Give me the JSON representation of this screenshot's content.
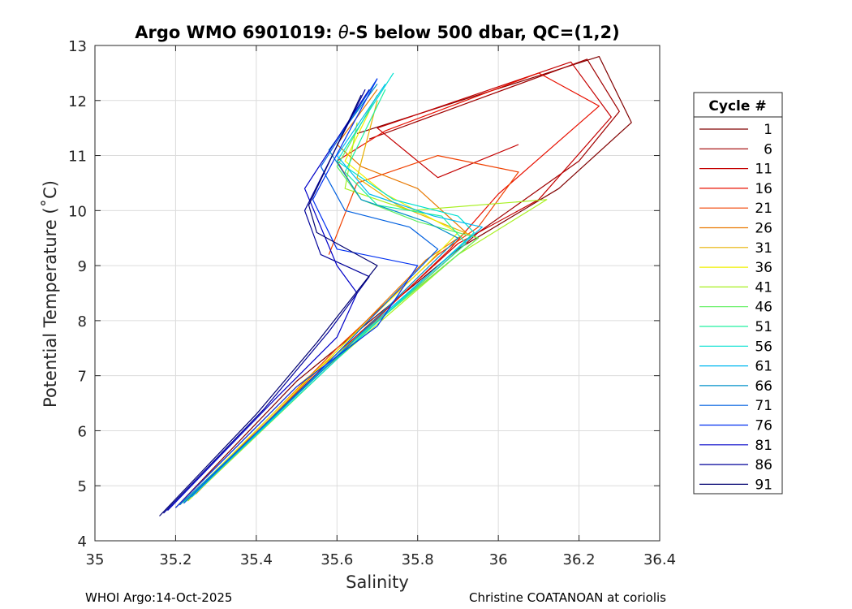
{
  "chart_data": {
    "type": "line",
    "title_prefix": "Argo WMO 6901019: ",
    "title_theta": "θ",
    "title_suffix": "-S below 500 dbar,  QC=(1,2)",
    "xlabel": "Salinity",
    "ylabel": "Potential Temperature (˚C)",
    "xlim": [
      35,
      36.4
    ],
    "ylim": [
      4,
      13
    ],
    "xticks": [
      "35",
      "35.2",
      "35.4",
      "35.6",
      "35.8",
      "36",
      "36.2",
      "36.4"
    ],
    "yticks": [
      "4",
      "5",
      "6",
      "7",
      "8",
      "9",
      "10",
      "11",
      "12",
      "13"
    ],
    "grid": true,
    "legend_title": "Cycle #",
    "legend_position": "right",
    "legend": [
      {
        "label": "1",
        "color": "#800000"
      },
      {
        "label": "6",
        "color": "#a00000"
      },
      {
        "label": "11",
        "color": "#c40000"
      },
      {
        "label": "16",
        "color": "#e81000"
      },
      {
        "label": "21",
        "color": "#f04000"
      },
      {
        "label": "26",
        "color": "#e87800"
      },
      {
        "label": "31",
        "color": "#e8b000"
      },
      {
        "label": "36",
        "color": "#f0f000"
      },
      {
        "label": "41",
        "color": "#a8f020"
      },
      {
        "label": "46",
        "color": "#60f060"
      },
      {
        "label": "51",
        "color": "#20f0a0"
      },
      {
        "label": "56",
        "color": "#00e0d0"
      },
      {
        "label": "61",
        "color": "#00b8f0"
      },
      {
        "label": "66",
        "color": "#0090c8"
      },
      {
        "label": "71",
        "color": "#0060e0"
      },
      {
        "label": "76",
        "color": "#0030f0"
      },
      {
        "label": "81",
        "color": "#0000c8"
      },
      {
        "label": "86",
        "color": "#00009a"
      },
      {
        "label": "91",
        "color": "#000070"
      }
    ],
    "series": [
      {
        "name": "1",
        "color": "#800000",
        "points": [
          [
            35.2,
            4.6
          ],
          [
            35.5,
            6.9
          ],
          [
            35.9,
            9.3
          ],
          [
            36.15,
            10.4
          ],
          [
            36.33,
            11.6
          ],
          [
            36.25,
            12.8
          ],
          [
            35.65,
            11.4
          ]
        ]
      },
      {
        "name": "6",
        "color": "#a00000",
        "points": [
          [
            35.22,
            4.7
          ],
          [
            35.55,
            7.0
          ],
          [
            35.95,
            9.6
          ],
          [
            36.2,
            10.9
          ],
          [
            36.3,
            11.8
          ],
          [
            36.22,
            12.75
          ],
          [
            35.68,
            11.3
          ]
        ]
      },
      {
        "name": "11",
        "color": "#c40000",
        "points": [
          [
            35.23,
            4.75
          ],
          [
            35.6,
            7.4
          ],
          [
            35.9,
            9.4
          ],
          [
            36.1,
            10.2
          ],
          [
            36.28,
            11.7
          ],
          [
            36.18,
            12.7
          ],
          [
            35.7,
            11.5
          ],
          [
            35.85,
            10.6
          ],
          [
            36.05,
            11.2
          ]
        ]
      },
      {
        "name": "16",
        "color": "#e81000",
        "points": [
          [
            35.21,
            4.65
          ],
          [
            35.58,
            7.2
          ],
          [
            35.88,
            9.3
          ],
          [
            36.0,
            10.3
          ],
          [
            36.25,
            11.9
          ],
          [
            36.1,
            12.5
          ],
          [
            35.72,
            11.45
          ],
          [
            35.6,
            10.9
          ],
          [
            35.65,
            10.3
          ]
        ]
      },
      {
        "name": "21",
        "color": "#f04000",
        "points": [
          [
            35.24,
            4.8
          ],
          [
            35.6,
            7.5
          ],
          [
            35.85,
            9.2
          ],
          [
            35.95,
            9.7
          ],
          [
            36.05,
            10.7
          ],
          [
            35.85,
            11.0
          ],
          [
            35.65,
            10.5
          ],
          [
            35.58,
            9.2
          ]
        ]
      },
      {
        "name": "26",
        "color": "#e87800",
        "points": [
          [
            35.25,
            4.85
          ],
          [
            35.62,
            7.6
          ],
          [
            35.82,
            9.1
          ],
          [
            35.92,
            9.6
          ],
          [
            35.8,
            10.4
          ],
          [
            35.66,
            10.8
          ],
          [
            35.6,
            11.2
          ],
          [
            35.7,
            12.2
          ]
        ]
      },
      {
        "name": "31",
        "color": "#e8b000",
        "points": [
          [
            35.2,
            4.6
          ],
          [
            35.5,
            6.8
          ],
          [
            35.8,
            8.6
          ],
          [
            35.95,
            9.5
          ],
          [
            35.75,
            10.1
          ],
          [
            35.65,
            10.6
          ],
          [
            35.7,
            12.0
          ]
        ]
      },
      {
        "name": "36",
        "color": "#f0f000",
        "points": [
          [
            35.22,
            4.7
          ],
          [
            35.55,
            7.1
          ],
          [
            35.82,
            9.0
          ],
          [
            35.9,
            9.6
          ],
          [
            35.72,
            10.3
          ],
          [
            35.62,
            10.9
          ],
          [
            35.68,
            11.8
          ]
        ]
      },
      {
        "name": "41",
        "color": "#a8f020",
        "points": [
          [
            35.23,
            4.72
          ],
          [
            35.6,
            7.3
          ],
          [
            35.9,
            9.2
          ],
          [
            36.12,
            10.2
          ],
          [
            35.78,
            10.0
          ],
          [
            35.62,
            10.4
          ],
          [
            35.65,
            11.6
          ]
        ]
      },
      {
        "name": "46",
        "color": "#60f060",
        "points": [
          [
            35.24,
            4.8
          ],
          [
            35.62,
            7.5
          ],
          [
            35.95,
            9.5
          ],
          [
            35.8,
            9.8
          ],
          [
            35.66,
            10.2
          ],
          [
            35.6,
            10.8
          ],
          [
            35.7,
            12.1
          ]
        ]
      },
      {
        "name": "51",
        "color": "#20f0a0",
        "points": [
          [
            35.22,
            4.7
          ],
          [
            35.58,
            7.2
          ],
          [
            35.92,
            9.4
          ],
          [
            35.86,
            9.9
          ],
          [
            35.7,
            10.1
          ],
          [
            35.62,
            10.7
          ],
          [
            35.72,
            12.2
          ]
        ]
      },
      {
        "name": "56",
        "color": "#00e0d0",
        "points": [
          [
            35.23,
            4.75
          ],
          [
            35.6,
            7.3
          ],
          [
            35.94,
            9.6
          ],
          [
            35.9,
            9.9
          ],
          [
            35.74,
            10.2
          ],
          [
            35.6,
            10.9
          ],
          [
            35.74,
            12.5
          ]
        ]
      },
      {
        "name": "61",
        "color": "#00b8f0",
        "points": [
          [
            35.24,
            4.8
          ],
          [
            35.62,
            7.5
          ],
          [
            35.96,
            9.7
          ],
          [
            35.84,
            9.9
          ],
          [
            35.68,
            10.3
          ],
          [
            35.6,
            11.0
          ],
          [
            35.72,
            12.3
          ]
        ]
      },
      {
        "name": "66",
        "color": "#0090c8",
        "points": [
          [
            35.21,
            4.65
          ],
          [
            35.58,
            7.2
          ],
          [
            35.9,
            9.5
          ],
          [
            35.82,
            9.8
          ],
          [
            35.66,
            10.2
          ],
          [
            35.58,
            11.1
          ],
          [
            35.7,
            12.3
          ]
        ]
      },
      {
        "name": "71",
        "color": "#0060e0",
        "points": [
          [
            35.22,
            4.68
          ],
          [
            35.56,
            7.1
          ],
          [
            35.85,
            9.3
          ],
          [
            35.78,
            9.7
          ],
          [
            35.62,
            10.0
          ],
          [
            35.56,
            10.8
          ],
          [
            35.7,
            12.4
          ]
        ]
      },
      {
        "name": "76",
        "color": "#0030f0",
        "points": [
          [
            35.2,
            4.6
          ],
          [
            35.5,
            6.8
          ],
          [
            35.7,
            7.9
          ],
          [
            35.8,
            9.0
          ],
          [
            35.6,
            9.3
          ],
          [
            35.54,
            10.2
          ],
          [
            35.7,
            12.4
          ]
        ]
      },
      {
        "name": "81",
        "color": "#0000c8",
        "points": [
          [
            35.18,
            4.55
          ],
          [
            35.45,
            6.6
          ],
          [
            35.6,
            7.7
          ],
          [
            35.65,
            8.5
          ],
          [
            35.6,
            9.0
          ],
          [
            35.52,
            10.4
          ],
          [
            35.68,
            12.2
          ]
        ]
      },
      {
        "name": "86",
        "color": "#00009a",
        "points": [
          [
            35.17,
            4.5
          ],
          [
            35.42,
            6.4
          ],
          [
            35.58,
            7.8
          ],
          [
            35.68,
            8.8
          ],
          [
            35.56,
            9.2
          ],
          [
            35.52,
            10.0
          ],
          [
            35.67,
            12.2
          ]
        ]
      },
      {
        "name": "91",
        "color": "#000070",
        "points": [
          [
            35.16,
            4.45
          ],
          [
            35.4,
            6.3
          ],
          [
            35.55,
            7.6
          ],
          [
            35.7,
            9.0
          ],
          [
            35.55,
            9.6
          ],
          [
            35.53,
            10.1
          ],
          [
            35.66,
            12.1
          ]
        ]
      }
    ]
  },
  "footer": {
    "left": "WHOI Argo:14-Oct-2025",
    "right": "Christine COATANOAN at coriolis"
  }
}
